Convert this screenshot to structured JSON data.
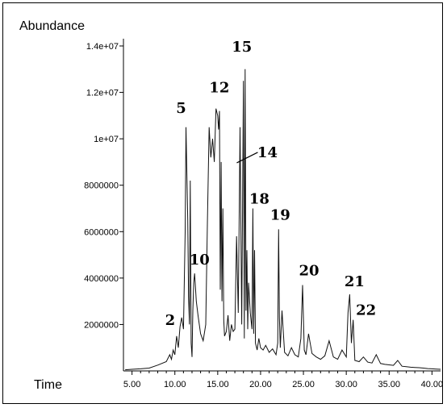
{
  "chart_data": {
    "type": "line",
    "ylabel": "Abundance",
    "xlabel": "Time",
    "xlim": [
      4.0,
      41.0
    ],
    "ylim": [
      0,
      14000000
    ],
    "x_ticks": [
      5,
      10,
      15,
      20,
      25,
      30,
      35,
      40
    ],
    "x_tick_labels": [
      "5.00",
      "10.00",
      "15.00",
      "20.00",
      "25.00",
      "30.00",
      "35.00",
      "40.00"
    ],
    "y_ticks": [
      2000000,
      4000000,
      6000000,
      8000000,
      10000000,
      12000000,
      14000000
    ],
    "y_tick_labels": [
      "2000000",
      "4000000",
      "6000000",
      "8000000",
      "1e+07",
      "1.2e+07",
      "1.4e+07"
    ],
    "series": [
      {
        "x": [
          4.2,
          5.0,
          6.0,
          7.0,
          8.0,
          9.0,
          9.4,
          9.6,
          9.8,
          10.0,
          10.2,
          10.4,
          10.6,
          10.8,
          11.0,
          11.2,
          11.3,
          11.5,
          11.6,
          11.7,
          11.8,
          11.9,
          12.0,
          12.1,
          12.2,
          12.3,
          12.5,
          12.7,
          13.0,
          13.3,
          13.6,
          13.8,
          14.0,
          14.2,
          14.4,
          14.6,
          14.8,
          15.0,
          15.1,
          15.2,
          15.3,
          15.4,
          15.5,
          15.6,
          15.7,
          15.8,
          16.0,
          16.2,
          16.4,
          16.6,
          16.8,
          17.0,
          17.2,
          17.4,
          17.6,
          17.8,
          18.0,
          18.1,
          18.2,
          18.3,
          18.4,
          18.5,
          18.6,
          18.8,
          19.0,
          19.1,
          19.2,
          19.3,
          19.4,
          19.6,
          19.8,
          20.0,
          20.3,
          20.6,
          21.0,
          21.4,
          21.8,
          22.0,
          22.1,
          22.2,
          22.3,
          22.5,
          22.8,
          23.2,
          23.6,
          24.0,
          24.4,
          24.7,
          24.9,
          25.1,
          25.3,
          25.6,
          26.0,
          26.5,
          27.0,
          27.5,
          28.0,
          28.5,
          29.0,
          29.5,
          30.0,
          30.2,
          30.4,
          30.6,
          30.8,
          31.0,
          31.5,
          32.0,
          32.5,
          33.0,
          33.5,
          34.0,
          34.5,
          35.0,
          35.5,
          36.0,
          36.5,
          37.0,
          37.5,
          38.0,
          38.5,
          39.0,
          39.5,
          40.0,
          40.5,
          41.0
        ],
        "y": [
          50000,
          70000,
          90000,
          120000,
          250000,
          400000,
          700000,
          500000,
          900000,
          700000,
          1500000,
          1000000,
          1900000,
          2300000,
          1800000,
          6000000,
          10500000,
          6500000,
          3200000,
          2000000,
          8200000,
          1200000,
          600000,
          2600000,
          3800000,
          4200000,
          3000000,
          2400000,
          1600000,
          1300000,
          2000000,
          6500000,
          10500000,
          9200000,
          10000000,
          9000000,
          11300000,
          11000000,
          10400000,
          11200000,
          3500000,
          9000000,
          3000000,
          7000000,
          2200000,
          1500000,
          1700000,
          2400000,
          1300000,
          2000000,
          1700000,
          1800000,
          5800000,
          2500000,
          10500000,
          2000000,
          12500000,
          1400000,
          13000000,
          2600000,
          5200000,
          1800000,
          3800000,
          2500000,
          1800000,
          7000000,
          1600000,
          5200000,
          1200000,
          900000,
          1400000,
          1000000,
          900000,
          1100000,
          800000,
          950000,
          700000,
          1200000,
          6100000,
          2300000,
          1000000,
          2600000,
          800000,
          650000,
          1000000,
          700000,
          600000,
          1400000,
          3700000,
          900000,
          700000,
          1600000,
          750000,
          600000,
          500000,
          650000,
          1300000,
          600000,
          500000,
          900000,
          600000,
          2500000,
          3300000,
          1200000,
          2200000,
          450000,
          400000,
          600000,
          380000,
          340000,
          700000,
          320000,
          280000,
          260000,
          240000,
          450000,
          200000,
          180000,
          160000,
          150000,
          140000,
          120000,
          100000,
          90000,
          80000,
          70000
        ]
      }
    ],
    "annotations": [
      {
        "label": "2",
        "x": 10.2,
        "y": 1500000
      },
      {
        "label": "5",
        "x": 11.3,
        "y": 10500000
      },
      {
        "label": "10",
        "x": 12.5,
        "y": 4300000
      },
      {
        "label": "12",
        "x": 15.0,
        "y": 11300000
      },
      {
        "label": "14",
        "x": 17.6,
        "y": 9000000
      },
      {
        "label": "15",
        "x": 18.2,
        "y": 13000000
      },
      {
        "label": "18",
        "x": 19.1,
        "y": 7000000
      },
      {
        "label": "19",
        "x": 22.1,
        "y": 6100000
      },
      {
        "label": "20",
        "x": 24.9,
        "y": 3700000
      },
      {
        "label": "21",
        "x": 30.4,
        "y": 3300000
      },
      {
        "label": "22",
        "x": 30.8,
        "y": 2200000
      }
    ]
  }
}
